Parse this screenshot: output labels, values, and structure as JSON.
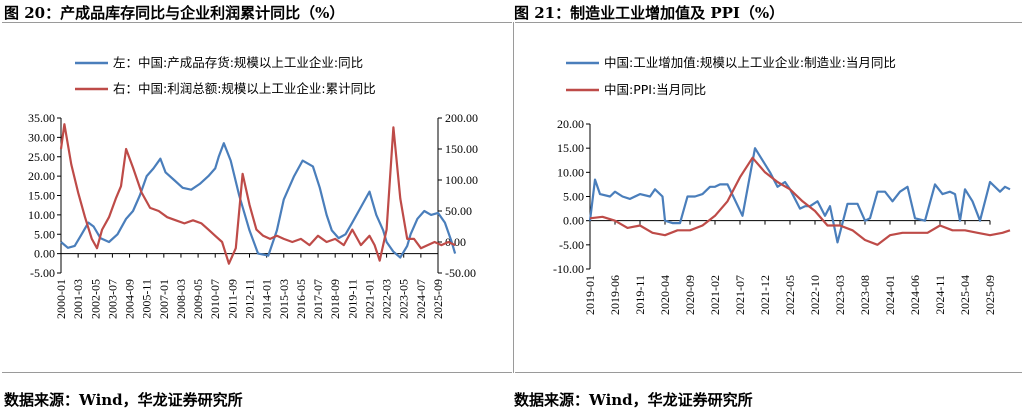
{
  "figure_left": {
    "title": "图 20：产成品库存同比与企业利润累计同比（%）",
    "source": "数据来源：Wind，华龙证券研究所"
  },
  "figure_right": {
    "title": "图 21：制造业工业增加值及 PPI（%）",
    "source": "数据来源：Wind，华龙证券研究所"
  },
  "colors": {
    "blue": "#4a7ebb",
    "red": "#be4b48"
  },
  "chart_data": [
    {
      "type": "line",
      "title": "图 20：产成品库存同比与企业利润累计同比（%）",
      "x_ticks": [
        "2000-01",
        "2001-03",
        "2002-05",
        "2003-07",
        "2004-09",
        "2005-11",
        "2007-01",
        "2008-03",
        "2009-05",
        "2010-07",
        "2011-09",
        "2012-11",
        "2014-01",
        "2015-03",
        "2016-05",
        "2017-07",
        "2018-09",
        "2019-11",
        "2021-01",
        "2022-03",
        "2023-05",
        "2024-07",
        "2025-09"
      ],
      "y_left": {
        "range": [
          -5,
          35
        ],
        "ticks": [
          "35.00",
          "30.00",
          "25.00",
          "20.00",
          "15.00",
          "10.00",
          "5.00",
          "0.00",
          "-5.00"
        ]
      },
      "y_right": {
        "range": [
          -50,
          200
        ],
        "ticks": [
          "200.00",
          "150.00",
          "100.00",
          "50.00",
          "0.00",
          "-50.00"
        ]
      },
      "series": [
        {
          "name": "左：中国:产成品存货:规模以上工业企业:同比",
          "axis": "left",
          "x": [
            0,
            0.4,
            0.8,
            1.2,
            1.6,
            1.9,
            2.3,
            2.8,
            3.3,
            3.8,
            4.2,
            4.6,
            5.0,
            5.4,
            5.8,
            6.1,
            6.6,
            7.1,
            7.6,
            8.1,
            8.6,
            9.0,
            9.2,
            9.5,
            9.9,
            10.4,
            11.0,
            11.5,
            12.1,
            12.6,
            13.0,
            13.6,
            14.1,
            14.7,
            15.1,
            15.5,
            15.8,
            16.2,
            16.6,
            17.0,
            17.5,
            18.0,
            18.4,
            18.8,
            19.0,
            19.4,
            19.8,
            20.2,
            20.4,
            20.8,
            21.2,
            21.6,
            22.0,
            22.4,
            22.8,
            23.0
          ],
          "y": [
            3,
            1.5,
            2,
            5,
            8,
            7,
            4,
            3,
            5,
            9,
            11,
            15,
            20,
            22,
            24.5,
            21,
            19,
            17,
            16.5,
            18,
            20,
            22,
            25,
            28.5,
            24,
            15,
            6,
            0,
            -0.5,
            6,
            14,
            20,
            24,
            22.5,
            17,
            10,
            6,
            4,
            5,
            8,
            12,
            16,
            10,
            6,
            3,
            0.5,
            -1,
            2,
            5,
            9,
            11,
            10,
            10.5,
            8,
            3,
            0
          ]
        },
        {
          "name": "右：中国:利润总额:规模以上工业企业:累计同比",
          "axis": "right",
          "x": [
            0,
            0.2,
            0.6,
            1.0,
            1.4,
            1.8,
            2.1,
            2.4,
            2.8,
            3.2,
            3.5,
            3.8,
            4.2,
            4.7,
            5.2,
            5.7,
            6.2,
            6.7,
            7.2,
            7.7,
            8.2,
            8.6,
            9.0,
            9.4,
            9.8,
            10.2,
            10.6,
            11.0,
            11.4,
            11.8,
            12.2,
            12.6,
            13.0,
            13.5,
            14.0,
            14.5,
            15.0,
            15.5,
            16.0,
            16.5,
            17.0,
            17.5,
            18.0,
            18.3,
            18.6,
            19.0,
            19.4,
            19.8,
            20.2,
            20.6,
            21.0,
            21.4,
            21.8,
            22.2,
            22.6,
            23.0
          ],
          "y": [
            150,
            190,
            125,
            80,
            40,
            5,
            -10,
            20,
            40,
            70,
            90,
            150,
            120,
            80,
            55,
            50,
            40,
            35,
            30,
            35,
            30,
            20,
            10,
            0,
            -35,
            -10,
            110,
            60,
            20,
            10,
            5,
            10,
            5,
            0,
            5,
            -5,
            10,
            0,
            5,
            -5,
            20,
            -5,
            10,
            -5,
            -30,
            20,
            185,
            70,
            5,
            5,
            -10,
            -5,
            0,
            -5,
            0,
            -5
          ]
        }
      ]
    },
    {
      "type": "line",
      "title": "图 21：制造业工业增加值及 PPI（%）",
      "x_ticks": [
        "2019-01",
        "2019-06",
        "2019-11",
        "2020-04",
        "2020-09",
        "2021-02",
        "2021-07",
        "2021-12",
        "2022-05",
        "2022-10",
        "2023-03",
        "2023-08",
        "2024-01",
        "2024-06",
        "2024-11",
        "2025-04",
        "2025-09"
      ],
      "y_left": {
        "range": [
          -10,
          20
        ],
        "ticks": [
          "20.00",
          "15.00",
          "10.00",
          "5.00",
          "0.00",
          "-5.00",
          "-10.00"
        ]
      },
      "series": [
        {
          "name": "中国:工业增加值:规模以上工业企业:制造业:当月同比",
          "x": [
            0,
            0.2,
            0.4,
            0.8,
            1.0,
            1.3,
            1.6,
            2.0,
            2.4,
            2.6,
            2.9,
            3.0,
            3.3,
            3.6,
            3.9,
            4.2,
            4.5,
            4.8,
            5.0,
            5.2,
            5.5,
            6.1,
            6.6,
            7.2,
            7.5,
            7.8,
            8.0,
            8.4,
            8.6,
            8.8,
            9.1,
            9.4,
            9.6,
            9.9,
            10.3,
            10.7,
            11.0,
            11.2,
            11.5,
            11.8,
            12.1,
            12.4,
            12.7,
            13.0,
            13.4,
            13.8,
            14.1,
            14.4,
            14.6,
            14.8,
            15.0,
            15.3,
            15.6,
            16.0,
            16.4,
            16.6,
            16.8
          ],
          "y": [
            0,
            8.5,
            5.5,
            5,
            6,
            5,
            4.5,
            5.5,
            5,
            6.5,
            5,
            0,
            -0.5,
            -0.5,
            5,
            5,
            5.5,
            7,
            7,
            7.5,
            7.5,
            1,
            15,
            10,
            7,
            8,
            6.5,
            2.5,
            3,
            3,
            4,
            1,
            3,
            -4.5,
            3.5,
            3.5,
            0,
            0.5,
            6,
            6,
            4,
            6,
            7,
            0.5,
            0,
            7.5,
            5.5,
            6,
            5.5,
            0,
            6.5,
            4,
            0,
            8,
            6,
            7,
            6.5
          ]
        },
        {
          "name": "中国:PPI:当月同比",
          "x": [
            0,
            0.5,
            1.0,
            1.5,
            2.0,
            2.5,
            3.0,
            3.5,
            4.0,
            4.5,
            5.0,
            5.5,
            6.0,
            6.5,
            7.0,
            7.5,
            8.0,
            8.5,
            9.0,
            9.5,
            10.0,
            10.5,
            11.0,
            11.5,
            12.0,
            12.5,
            13.0,
            13.5,
            14.0,
            14.5,
            15.0,
            15.5,
            16.0,
            16.5,
            16.8
          ],
          "y": [
            0.5,
            0.8,
            0,
            -1.5,
            -1,
            -2.5,
            -3,
            -2,
            -2,
            -1,
            1,
            4,
            9,
            13,
            10,
            8,
            6.5,
            4,
            2,
            -1,
            -1,
            -2,
            -4,
            -5,
            -3,
            -2.5,
            -2.5,
            -2.5,
            -1,
            -2,
            -2,
            -2.5,
            -3,
            -2.5,
            -2
          ]
        }
      ]
    }
  ]
}
